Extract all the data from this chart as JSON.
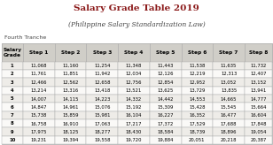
{
  "title": "Salary Grade Table 2019",
  "subtitle": "(Philippine Salary Standardization Law)",
  "tranche": "Fourth Tranche",
  "headers": [
    "Salary\nGrade",
    "Step 1",
    "Step 2",
    "Step 3",
    "Step 4",
    "Step 5",
    "Step 6",
    "Step 7",
    "Step 8"
  ],
  "rows": [
    [
      1,
      "11,068",
      "11,160",
      "11,254",
      "11,348",
      "11,443",
      "11,538",
      "11,635",
      "11,732"
    ],
    [
      2,
      "11,761",
      "11,851",
      "11,942",
      "12,034",
      "12,126",
      "12,219",
      "12,313",
      "12,407"
    ],
    [
      3,
      "12,466",
      "12,562",
      "12,658",
      "12,756",
      "12,854",
      "12,952",
      "13,052",
      "13,152"
    ],
    [
      4,
      "13,214",
      "13,316",
      "13,418",
      "13,521",
      "13,625",
      "13,729",
      "13,835",
      "13,941"
    ],
    [
      5,
      "14,007",
      "14,115",
      "14,223",
      "14,332",
      "14,442",
      "14,553",
      "14,665",
      "14,777"
    ],
    [
      6,
      "14,847",
      "14,961",
      "15,076",
      "15,192",
      "15,309",
      "15,428",
      "15,545",
      "15,664"
    ],
    [
      7,
      "15,738",
      "15,859",
      "15,981",
      "16,104",
      "16,227",
      "16,352",
      "16,477",
      "16,604"
    ],
    [
      8,
      "16,758",
      "16,910",
      "17,063",
      "17,217",
      "17,372",
      "17,529",
      "17,688",
      "17,848"
    ],
    [
      9,
      "17,975",
      "18,125",
      "18,277",
      "18,430",
      "18,584",
      "18,739",
      "18,896",
      "19,054"
    ],
    [
      10,
      "19,231",
      "19,394",
      "19,558",
      "19,720",
      "19,884",
      "20,051",
      "20,218",
      "20,387"
    ]
  ],
  "title_color": "#8B1A1A",
  "subtitle_color": "#444444",
  "tranche_color": "#444444",
  "header_bg": "#d0cec8",
  "header_text_color": "#000000",
  "row_bg_even": "#eeece8",
  "row_bg_odd": "#faf9f7",
  "border_color": "#aaaaaa",
  "bg_color": "#ffffff",
  "title_fontsize": 7.5,
  "subtitle_fontsize": 5.5,
  "tranche_fontsize": 4.5,
  "header_fontsize": 4.2,
  "cell_fontsize": 3.8
}
